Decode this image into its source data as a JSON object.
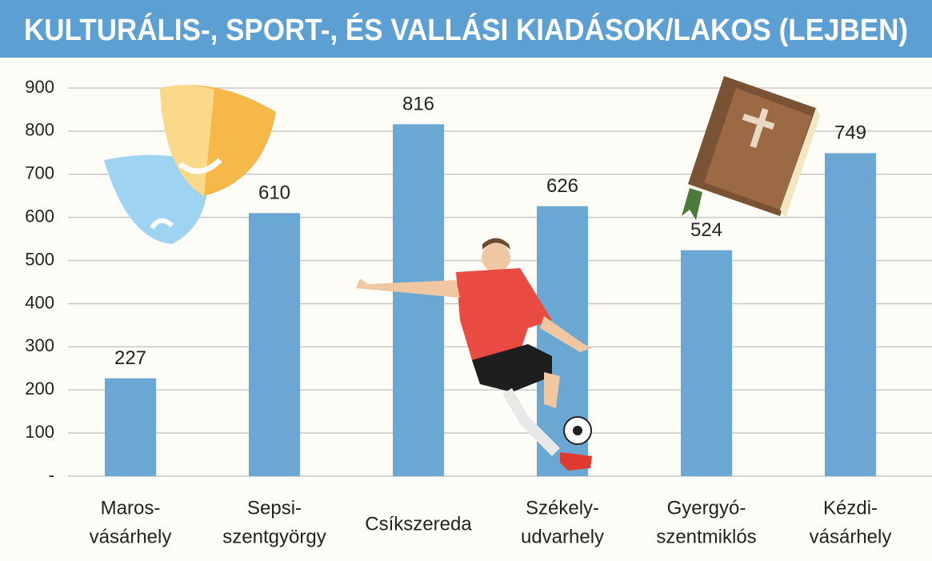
{
  "chart_data": {
    "type": "bar",
    "title": "KULTURÁLIS-, SPORT-, ÉS VALLÁSI KIADÁSOK/LAKOS (LEJBEN)",
    "categories": [
      [
        "Maros-",
        "vásárhely"
      ],
      [
        "Sepsi-",
        "szentgyörgy"
      ],
      [
        "Csíkszereda"
      ],
      [
        "Székely-",
        "udvarhely"
      ],
      [
        "Gyergyó-",
        "szentmiklós"
      ],
      [
        "Kézdi-",
        "vásárhely"
      ]
    ],
    "values": [
      227,
      610,
      816,
      626,
      524,
      749
    ],
    "color": "#6ba7d3",
    "ylim": [
      0,
      900
    ],
    "yticks": [
      {
        "value": 0,
        "label": "-"
      },
      100,
      200,
      300,
      400,
      500,
      600,
      700,
      800,
      900
    ],
    "grid": true
  }
}
